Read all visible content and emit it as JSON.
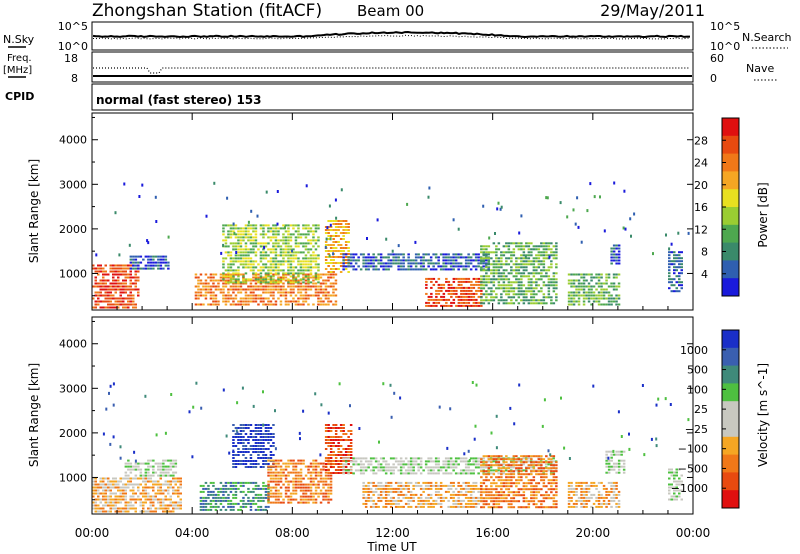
{
  "header": {
    "station": "Zhongshan Station (fitACF)",
    "beam": "Beam 00",
    "date": "29/May/2011"
  },
  "noise_panel": {
    "left_label": "N.Sky",
    "left_ticks": [
      "10^5",
      "10^0"
    ],
    "right_label": "N.Search",
    "right_ticks": [
      "10^5",
      "10^0"
    ]
  },
  "freq_panel": {
    "left_label_1": "Freq.",
    "left_label_2": "[MHz]",
    "left_ticks": [
      "18",
      "8"
    ],
    "right_label": "Nave",
    "right_ticks": [
      "60",
      "0"
    ]
  },
  "cpid_panel": {
    "label": "CPID",
    "mode": "normal (fast stereo) 153"
  },
  "colors": {
    "power": [
      "#1a1adb",
      "#2f5fb0",
      "#3a8a6a",
      "#4ea84f",
      "#9acd32",
      "#e8e020",
      "#f5a623",
      "#f07818",
      "#e84a10",
      "#e01010"
    ],
    "velocity": [
      "#1a2fc8",
      "#3a5fb0",
      "#3f8a7a",
      "#4ec040",
      "#c8c8c0",
      "#c8c8c0",
      "#f5a623",
      "#f07818",
      "#e84a10",
      "#e01010"
    ]
  },
  "chart_data": [
    {
      "type": "heatmap",
      "quantity": "power",
      "ylabel": "Slant Range [km]",
      "yticks": [
        1000,
        2000,
        3000,
        4000
      ],
      "ylim": [
        180,
        4600
      ],
      "xlim_hours": [
        0,
        24
      ],
      "colorbar_label": "Power [dB]",
      "colorbar_ticks": [
        "4",
        "8",
        "12",
        "16",
        "20",
        "24",
        "28"
      ],
      "blobs": [
        {
          "t0": 0.0,
          "t1": 1.8,
          "r0": 250,
          "r1": 1200,
          "level": 8
        },
        {
          "t0": 4.1,
          "t1": 9.7,
          "r0": 300,
          "r1": 1000,
          "level": 7
        },
        {
          "t0": 5.2,
          "t1": 9.0,
          "r0": 800,
          "r1": 2100,
          "level": 4
        },
        {
          "t0": 9.3,
          "t1": 10.2,
          "r0": 1000,
          "r1": 2200,
          "level": 6
        },
        {
          "t0": 10.0,
          "t1": 15.8,
          "r0": 1050,
          "r1": 1450,
          "level": 1
        },
        {
          "t0": 13.3,
          "t1": 15.5,
          "r0": 250,
          "r1": 900,
          "level": 8
        },
        {
          "t0": 15.5,
          "t1": 18.5,
          "r0": 350,
          "r1": 1700,
          "level": 3
        },
        {
          "t0": 19.0,
          "t1": 21.0,
          "r0": 300,
          "r1": 1000,
          "level": 3
        },
        {
          "t0": 20.7,
          "t1": 21.0,
          "r0": 1200,
          "r1": 1650,
          "level": 1
        },
        {
          "t0": 23.0,
          "t1": 23.5,
          "r0": 600,
          "r1": 1500,
          "level": 1
        },
        {
          "t0": 1.5,
          "t1": 3.0,
          "r0": 1100,
          "r1": 1400,
          "level": 1
        }
      ]
    },
    {
      "type": "heatmap",
      "quantity": "velocity",
      "ylabel": "Slant Range [km]",
      "yticks": [
        1000,
        2000,
        3000,
        4000
      ],
      "ylim": [
        180,
        4600
      ],
      "xlim_hours": [
        0,
        24
      ],
      "xticks": [
        "00:00",
        "04:00",
        "08:00",
        "12:00",
        "16:00",
        "20:00",
        "00:00"
      ],
      "xlabel": "Time UT",
      "colorbar_label": "Velocity [m s^-1]",
      "colorbar_ticks": [
        "1000",
        "500",
        "100",
        "25",
        "−25",
        "−100",
        "−500",
        "−1000"
      ],
      "blobs": [
        {
          "t0": 0.0,
          "t1": 3.5,
          "r0": 250,
          "r1": 1000,
          "level": 6
        },
        {
          "t0": 4.3,
          "t1": 7.0,
          "r0": 250,
          "r1": 900,
          "level": 2
        },
        {
          "t0": 5.6,
          "t1": 7.2,
          "r0": 1200,
          "r1": 2200,
          "level": 0
        },
        {
          "t0": 7.0,
          "t1": 9.5,
          "r0": 400,
          "r1": 1400,
          "level": 7
        },
        {
          "t0": 9.3,
          "t1": 10.3,
          "r0": 1100,
          "r1": 2200,
          "level": 8
        },
        {
          "t0": 10.0,
          "t1": 18.5,
          "r0": 1050,
          "r1": 1450,
          "level": 4
        },
        {
          "t0": 10.8,
          "t1": 15.5,
          "r0": 300,
          "r1": 900,
          "level": 6
        },
        {
          "t0": 15.5,
          "t1": 18.5,
          "r0": 300,
          "r1": 1500,
          "level": 7
        },
        {
          "t0": 19.0,
          "t1": 21.0,
          "r0": 300,
          "r1": 900,
          "level": 6
        },
        {
          "t0": 20.5,
          "t1": 21.2,
          "r0": 1100,
          "r1": 1600,
          "level": 4
        },
        {
          "t0": 23.0,
          "t1": 23.5,
          "r0": 500,
          "r1": 1200,
          "level": 4
        },
        {
          "t0": 1.3,
          "t1": 3.3,
          "r0": 1050,
          "r1": 1400,
          "level": 4
        }
      ]
    }
  ]
}
